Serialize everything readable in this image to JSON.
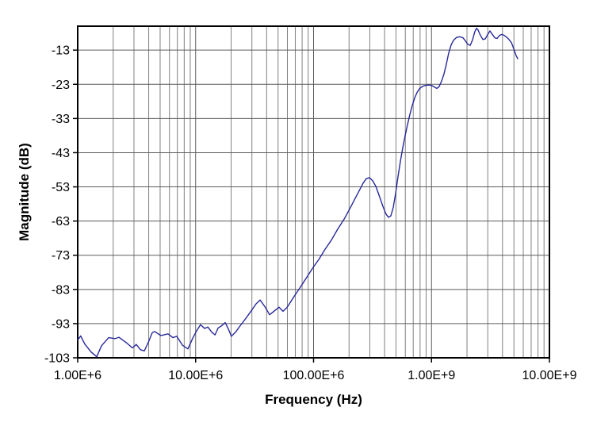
{
  "chart_data": {
    "type": "line",
    "title": "",
    "xlabel": "Frequency (Hz)",
    "ylabel": "Magnitude (dB)",
    "x_scale": "log",
    "xlim": [
      1000000.0,
      10000000000.0
    ],
    "ylim": [
      -103,
      -6
    ],
    "grid": true,
    "legend": "none",
    "x_ticks": [
      {
        "value": 1000000.0,
        "label": "1.00E+6"
      },
      {
        "value": 10000000.0,
        "label": "10.00E+6"
      },
      {
        "value": 100000000.0,
        "label": "100.00E+6"
      },
      {
        "value": 1000000000.0,
        "label": "1.00E+9"
      },
      {
        "value": 10000000000.0,
        "label": "10.00E+9"
      }
    ],
    "y_ticks": [
      {
        "value": -13,
        "label": "-13"
      },
      {
        "value": -23,
        "label": "-23"
      },
      {
        "value": -33,
        "label": "-33"
      },
      {
        "value": -43,
        "label": "-43"
      },
      {
        "value": -53,
        "label": "-53"
      },
      {
        "value": -63,
        "label": "-63"
      },
      {
        "value": -73,
        "label": "-73"
      },
      {
        "value": -83,
        "label": "-83"
      },
      {
        "value": -93,
        "label": "-93"
      },
      {
        "value": -103,
        "label": "-103"
      }
    ],
    "minor_log_multiples": [
      2,
      3,
      4,
      5,
      6,
      7,
      8,
      9
    ],
    "colors": {
      "curve": "#28289b",
      "grid_major": "#5c5c5c",
      "grid_minor": "#808080",
      "axis_border": "#000000",
      "background": "#ffffff",
      "text": "#000000"
    },
    "series": [
      {
        "name": "magnitude",
        "points": [
          [
            1000000.0,
            -97.8
          ],
          [
            1060000.0,
            -96.6
          ],
          [
            1150000.0,
            -99.0
          ],
          [
            1300000.0,
            -101.3
          ],
          [
            1450000.0,
            -102.7
          ],
          [
            1590000.0,
            -99.5
          ],
          [
            1830000.0,
            -97.1
          ],
          [
            2070000.0,
            -97.4
          ],
          [
            2240000.0,
            -97.0
          ],
          [
            2610000.0,
            -98.7
          ],
          [
            2910000.0,
            -100.1
          ],
          [
            3140000.0,
            -99.1
          ],
          [
            3400000.0,
            -100.6
          ],
          [
            3670000.0,
            -101.0
          ],
          [
            3970000.0,
            -98.5
          ],
          [
            4280000.0,
            -95.7
          ],
          [
            4490000.0,
            -95.3
          ],
          [
            5080000.0,
            -96.5
          ],
          [
            5840000.0,
            -96.0
          ],
          [
            6410000.0,
            -97.1
          ],
          [
            6920000.0,
            -96.7
          ],
          [
            7720000.0,
            -99.3
          ],
          [
            8600000.0,
            -100.4
          ],
          [
            9440000.0,
            -97.3
          ],
          [
            10200000.0,
            -95.1
          ],
          [
            11000000.0,
            -93.3
          ],
          [
            11900000.0,
            -94.4
          ],
          [
            12700000.0,
            -94.0
          ],
          [
            13700000.0,
            -95.5
          ],
          [
            14600000.0,
            -96.3
          ],
          [
            15500000.0,
            -94.3
          ],
          [
            16500000.0,
            -93.7
          ],
          [
            17800000.0,
            -92.7
          ],
          [
            18900000.0,
            -94.5
          ],
          [
            20100000.0,
            -96.7
          ],
          [
            21800000.0,
            -95.5
          ],
          [
            23900000.0,
            -93.6
          ],
          [
            26600000.0,
            -91.5
          ],
          [
            29700000.0,
            -89.2
          ],
          [
            32600000.0,
            -87.2
          ],
          [
            35200000.0,
            -86.1
          ],
          [
            38600000.0,
            -88.0
          ],
          [
            42400000.0,
            -90.4
          ],
          [
            46500000.0,
            -89.3
          ],
          [
            51000000.0,
            -88.2
          ],
          [
            55100000.0,
            -89.4
          ],
          [
            59500000.0,
            -88.3
          ],
          [
            67400000.0,
            -85.4
          ],
          [
            76300000.0,
            -82.6
          ],
          [
            86300000.0,
            -79.8
          ],
          [
            97700000.0,
            -76.9
          ],
          [
            111000000.0,
            -74.2
          ],
          [
            125000000.0,
            -71.3
          ],
          [
            142000000.0,
            -68.5
          ],
          [
            160000000.0,
            -65.4
          ],
          [
            182000000.0,
            -62.4
          ],
          [
            205000000.0,
            -59.1
          ],
          [
            225000000.0,
            -56.4
          ],
          [
            244000000.0,
            -54.1
          ],
          [
            263000000.0,
            -51.9
          ],
          [
            280000000.0,
            -50.6
          ],
          [
            298000000.0,
            -50.3
          ],
          [
            317000000.0,
            -51.2
          ],
          [
            337000000.0,
            -52.8
          ],
          [
            364000000.0,
            -56.0
          ],
          [
            388000000.0,
            -58.8
          ],
          [
            412000000.0,
            -61.0
          ],
          [
            432000000.0,
            -61.9
          ],
          [
            452000000.0,
            -61.5
          ],
          [
            474000000.0,
            -59.0
          ],
          [
            496000000.0,
            -55.0
          ],
          [
            520000000.0,
            -50.0
          ],
          [
            545000000.0,
            -45.5
          ],
          [
            571000000.0,
            -41.5
          ],
          [
            598000000.0,
            -38.0
          ],
          [
            626000000.0,
            -34.8
          ],
          [
            656000000.0,
            -31.8
          ],
          [
            687000000.0,
            -29.2
          ],
          [
            720000000.0,
            -27.0
          ],
          [
            754000000.0,
            -25.4
          ],
          [
            790000000.0,
            -24.3
          ],
          [
            840000000.0,
            -23.6
          ],
          [
            894000000.0,
            -23.3
          ],
          [
            951000000.0,
            -23.2
          ],
          [
            1010000000.0,
            -23.4
          ],
          [
            1060000000.0,
            -23.8
          ],
          [
            1110000000.0,
            -24.2
          ],
          [
            1160000000.0,
            -23.7
          ],
          [
            1220000000.0,
            -22.0
          ],
          [
            1280000000.0,
            -19.8
          ],
          [
            1340000000.0,
            -16.9
          ],
          [
            1400000000.0,
            -13.8
          ],
          [
            1470000000.0,
            -11.4
          ],
          [
            1540000000.0,
            -10.1
          ],
          [
            1630000000.0,
            -9.3
          ],
          [
            1740000000.0,
            -9.1
          ],
          [
            1850000000.0,
            -9.4
          ],
          [
            1940000000.0,
            -10.3
          ],
          [
            2030000000.0,
            -11.3
          ],
          [
            2130000000.0,
            -11.6
          ],
          [
            2230000000.0,
            -10.0
          ],
          [
            2330000000.0,
            -7.6
          ],
          [
            2410000000.0,
            -6.6
          ],
          [
            2480000000.0,
            -7.1
          ],
          [
            2600000000.0,
            -8.7
          ],
          [
            2730000000.0,
            -9.9
          ],
          [
            2860000000.0,
            -9.7
          ],
          [
            2990000000.0,
            -8.5
          ],
          [
            3130000000.0,
            -7.4
          ],
          [
            3280000000.0,
            -8.4
          ],
          [
            3440000000.0,
            -9.4
          ],
          [
            3600000000.0,
            -9.6
          ],
          [
            3770000000.0,
            -8.7
          ],
          [
            3950000000.0,
            -8.4
          ],
          [
            4140000000.0,
            -8.7
          ],
          [
            4330000000.0,
            -9.2
          ],
          [
            4540000000.0,
            -9.9
          ],
          [
            4760000000.0,
            -10.8
          ],
          [
            4980000000.0,
            -12.6
          ],
          [
            5220000000.0,
            -14.6
          ],
          [
            5380000000.0,
            -15.5
          ]
        ]
      }
    ]
  }
}
